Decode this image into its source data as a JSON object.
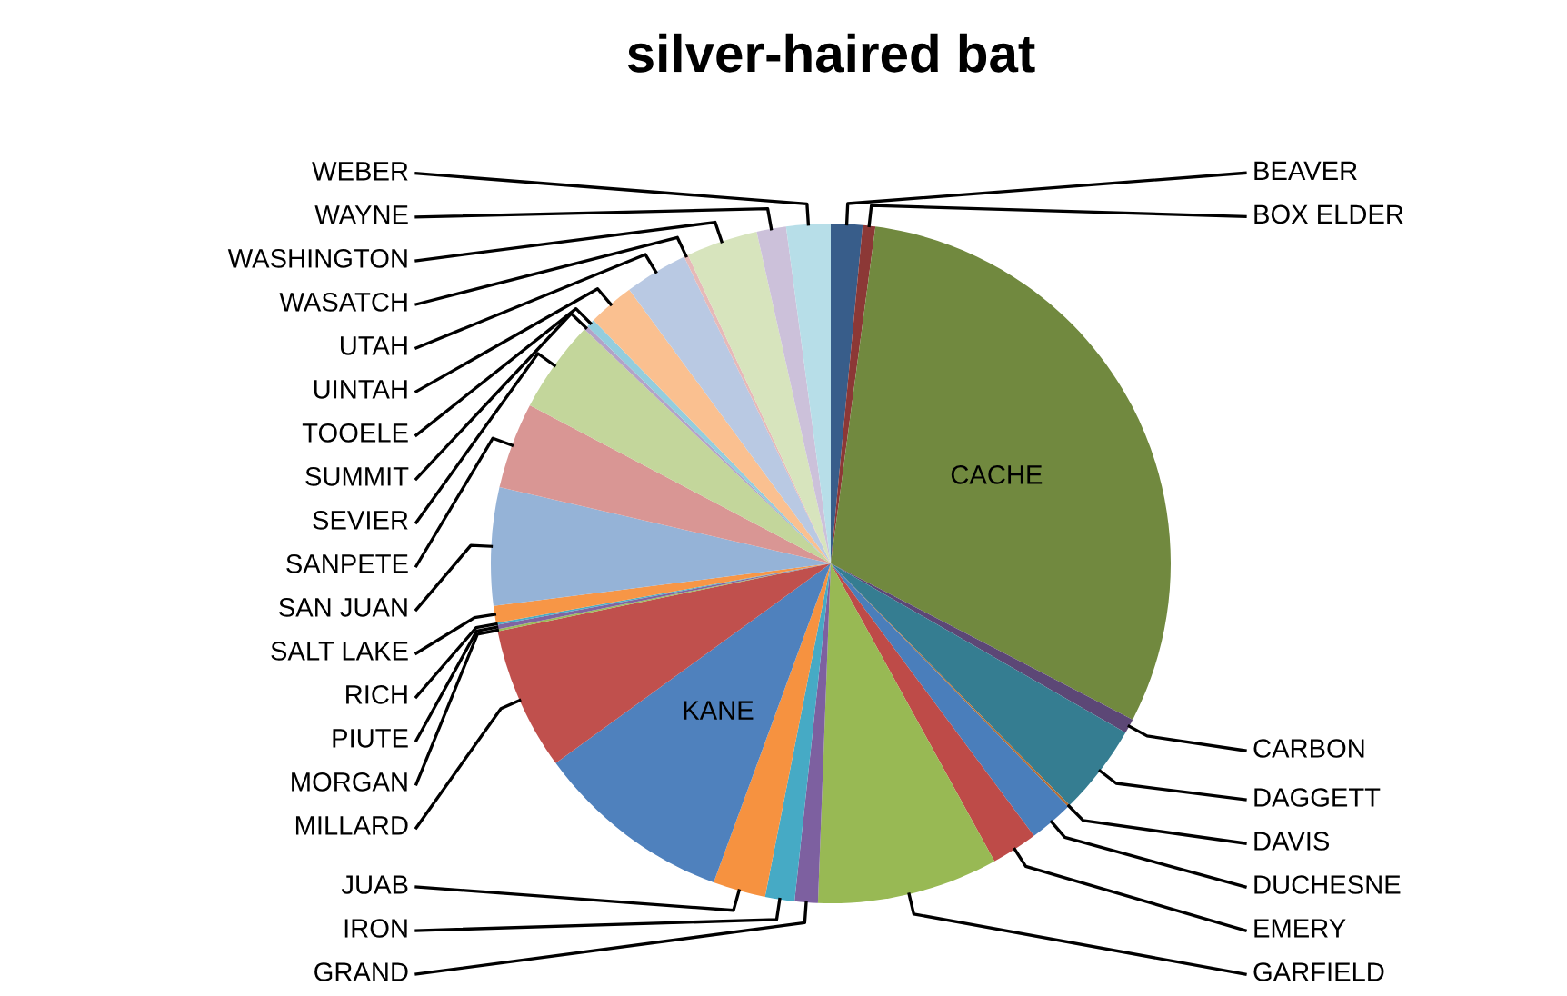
{
  "chart_data": {
    "type": "pie",
    "title": "silver-haired bat",
    "categories": [
      "BEAVER",
      "BOX ELDER",
      "CACHE",
      "CARBON",
      "DAGGETT",
      "DAVIS",
      "DUCHESNE",
      "EMERY",
      "GARFIELD",
      "GRAND",
      "IRON",
      "JUAB",
      "KANE",
      "MILLARD",
      "MORGAN",
      "PIUTE",
      "RICH",
      "SALT LAKE",
      "SAN JUAN",
      "SANPETE",
      "SEVIER",
      "SUMMIT",
      "TOOELE",
      "UINTAH",
      "UTAH",
      "WASATCH",
      "WASHINGTON",
      "WAYNE",
      "WEBER"
    ],
    "values": [
      1.5,
      0.6,
      30.5,
      0.7,
      4.3,
      0.1,
      2.1,
      2.2,
      8.6,
      1.1,
      1.4,
      2.5,
      9.4,
      6.8,
      0.1,
      0.2,
      0.1,
      0.8,
      5.6,
      4.1,
      4.4,
      0.2,
      0.4,
      2.2,
      3.0,
      0.2,
      3.4,
      1.4,
      2.1
    ],
    "colors": [
      "#385d8a",
      "#8c3836",
      "#71893f",
      "#5c4776",
      "#357d91",
      "#b66d31",
      "#4a7ebb",
      "#be4b48",
      "#98b954",
      "#7d60a0",
      "#46aac5",
      "#f69240",
      "#4f81bd",
      "#c0504d",
      "#9bbb59",
      "#8064a2",
      "#4bacc6",
      "#f79646",
      "#95b3d7",
      "#d99694",
      "#c3d69b",
      "#b3a2c7",
      "#93cddd",
      "#fac090",
      "#b9c9e3",
      "#e6b9b8",
      "#d7e4bd",
      "#ccc1da",
      "#b7dee8"
    ]
  }
}
